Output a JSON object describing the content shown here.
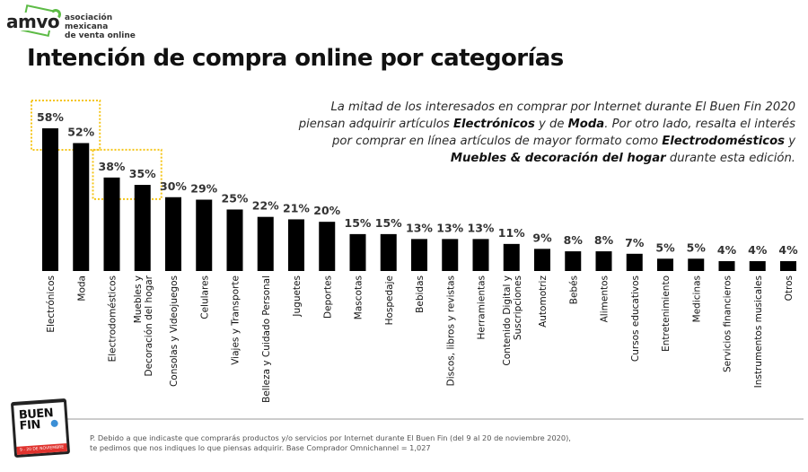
{
  "logo": {
    "mark": "amvo",
    "line1": "asociación mexicana",
    "line2": "de venta online",
    "brand_color": "#5dbb46"
  },
  "title": "Intención de compra online por categorías",
  "insight": {
    "p1": "La mitad de los interesados en comprar por Internet durante El Buen Fin 2020 piensan adquirir artículos ",
    "b1": "Electrónicos",
    "p2": " y de ",
    "b2": "Moda",
    "p3": ". Por otro lado, resalta el interés por comprar en línea artículos de mayor formato como ",
    "b3": "Electrodomésticos",
    "p4": " y ",
    "b4": "Muebles & decoración del hogar",
    "p5": " durante esta edición."
  },
  "chart_data": {
    "type": "bar",
    "title": "Intención de compra online por categorías",
    "xlabel": "",
    "ylabel": "",
    "ylim": [
      0,
      60
    ],
    "grid": false,
    "bar_color": "#000000",
    "highlight_color": "#f5c518",
    "highlight_groups": [
      [
        "Electrónicos",
        "Moda"
      ],
      [
        "Electrodomésticos",
        "Muebles y Decoración del hogar"
      ]
    ],
    "categories": [
      "Electrónicos",
      "Moda",
      "Electrodomésticos",
      "Muebles y Decoración del hogar",
      "Consolas y Videojuegos",
      "Celulares",
      "Viajes y Transporte",
      "Belleza y Cuidado Personal",
      "Juguetes",
      "Deportes",
      "Mascotas",
      "Hospedaje",
      "Bebidas",
      "Discos, libros y revistas",
      "Herramientas",
      "Contenido Digital y Suscripciones",
      "Automotriz",
      "Bebés",
      "Alimentos",
      "Cursos educativos",
      "Entretenimiento",
      "Medicinas",
      "Servicios financieros",
      "Instrumentos musicales",
      "Otros"
    ],
    "category_lines": [
      [
        "Electrónicos"
      ],
      [
        "Moda"
      ],
      [
        "Electrodomésticos"
      ],
      [
        "Muebles y",
        "Decoración del hogar"
      ],
      [
        "Consolas y Videojuegos"
      ],
      [
        "Celulares"
      ],
      [
        "Viajes y Transporte"
      ],
      [
        "Belleza y Cuidado Personal"
      ],
      [
        "Juguetes"
      ],
      [
        "Deportes"
      ],
      [
        "Mascotas"
      ],
      [
        "Hospedaje"
      ],
      [
        "Bebidas"
      ],
      [
        "Discos, libros y revistas"
      ],
      [
        "Herramientas"
      ],
      [
        "Contenido Digital y",
        "Suscripciones"
      ],
      [
        "Automotriz"
      ],
      [
        "Bebés"
      ],
      [
        "Alimentos"
      ],
      [
        "Cursos educativos"
      ],
      [
        "Entretenimiento"
      ],
      [
        "Medicinas"
      ],
      [
        "Servicios financieros"
      ],
      [
        "Instrumentos musicales"
      ],
      [
        "Otros"
      ]
    ],
    "values": [
      58,
      52,
      38,
      35,
      30,
      29,
      25,
      22,
      21,
      20,
      15,
      15,
      13,
      13,
      13,
      11,
      9,
      8,
      8,
      7,
      5,
      5,
      4,
      4,
      4
    ],
    "value_suffix": "%"
  },
  "badge": {
    "title_line1": "BUEN",
    "title_line2": "FIN",
    "dates": "9 - 20 DE NOVIEMBRE"
  },
  "footnote": {
    "line1": "P. Debido a que indicaste que comprarás productos y/o servicios por Internet durante El Buen Fin (del 9 al 20 de noviembre 2020),",
    "line2": "te pedimos que nos indiques lo que piensas adquirir. Base Comprador Omnichannel = 1,027"
  }
}
